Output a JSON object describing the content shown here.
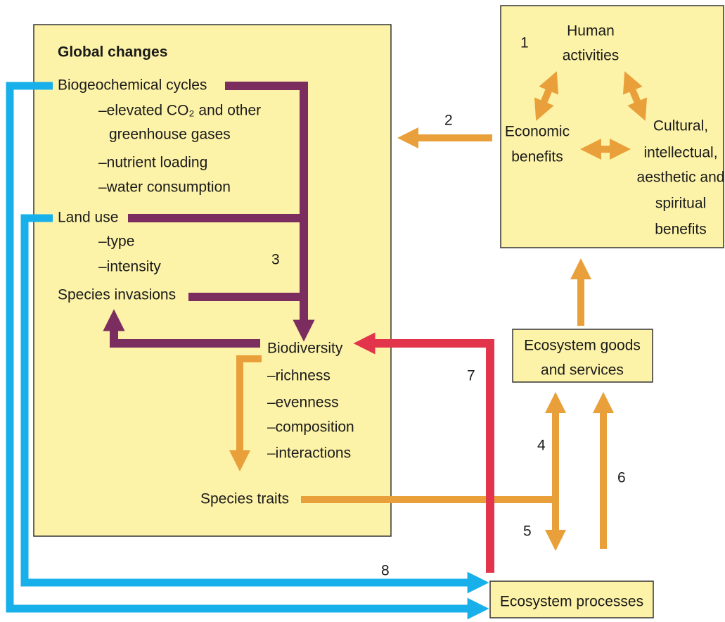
{
  "global_changes": {
    "title": "Global changes",
    "items": [
      "Biogeochemical cycles",
      "–elevated CO₂ and other",
      "greenhouse gases",
      "–nutrient loading",
      "–water consumption",
      "Land use",
      "–type",
      "–intensity",
      "Species invasions"
    ],
    "biodiversity": [
      "Biodiversity",
      "–richness",
      "–evenness",
      "–composition",
      "–interactions"
    ],
    "species_traits": "Species traits"
  },
  "human_box": {
    "number": "1",
    "human": [
      "Human",
      "activities"
    ],
    "economic": [
      "Economic",
      "benefits"
    ],
    "cultural": [
      "Cultural,",
      "intellectual,",
      "aesthetic and",
      "spiritual",
      "benefits"
    ]
  },
  "goods_box": [
    "Ecosystem goods",
    "and services"
  ],
  "processes_box": "Ecosystem processes",
  "numbers": [
    "2",
    "3",
    "4",
    "5",
    "6",
    "7",
    "8"
  ]
}
